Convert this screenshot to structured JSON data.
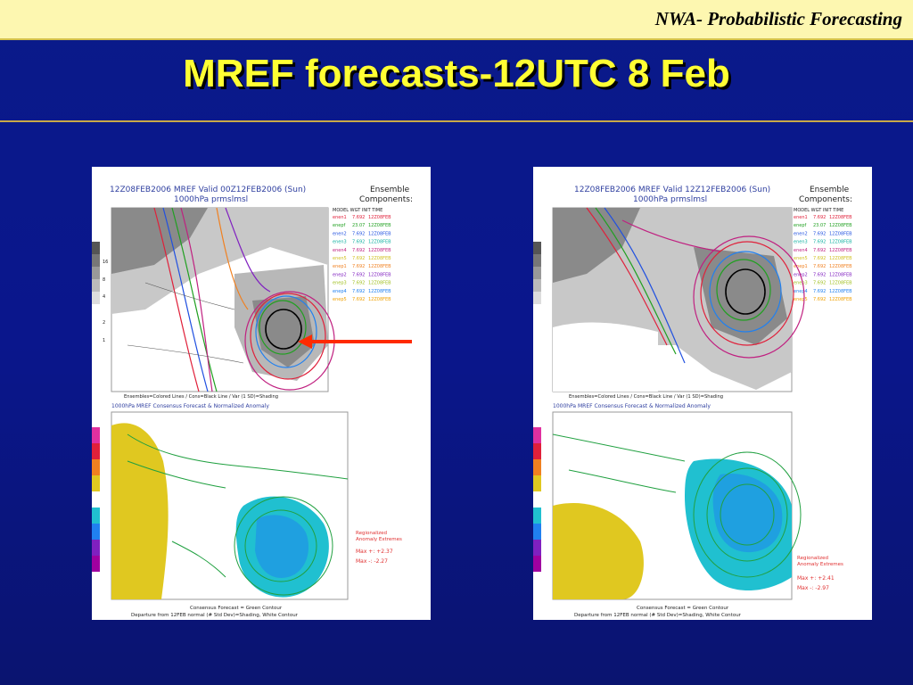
{
  "header": {
    "brand": "NWA- Probabilistic Forecasting"
  },
  "slide": {
    "title": "MREF forecasts-12UTC 8 Feb"
  },
  "colors": {
    "background": "#0a168c",
    "title": "#ffff33",
    "header_bar": "#fdf7b0",
    "arrow": "#ff2a00"
  },
  "panels": [
    {
      "top_title_1": "12Z08FEB2006 MREF Valid 00Z12FEB2006 (Sun)",
      "top_title_2": "1000hPa prmslmsl",
      "legend_title_1": "Ensemble",
      "legend_title_2": "Components:",
      "legend_header": "MODEL  WGT    INIT TIME",
      "ensemble_note": "Ensembles=Colored Lines / Cons=Black Line / Var (1 SD)=Shading",
      "bottom_title": "1000hPa MREF Consensus Forecast & Normalized Anomaly",
      "extremes_1": "Regionalized",
      "extremes_2": "Anomaly Extremes",
      "max_pos": "Max +:  +2.37",
      "max_neg": "Max -:  -2.27",
      "footer_1": "Consensus Forecast = Green Contour",
      "footer_2": "Departure from 12FEB normal (# Std Dev)=Shading, White Contour",
      "legend_rows": [
        {
          "model": "enen1",
          "wgt": "7.692",
          "init": "12Z08FEB",
          "color": "#e0203a"
        },
        {
          "model": "enepf",
          "wgt": "23.07",
          "init": "12Z08FEB",
          "color": "#20a020"
        },
        {
          "model": "enen2",
          "wgt": "7.692",
          "init": "12Z08FEB",
          "color": "#2050e0"
        },
        {
          "model": "enen3",
          "wgt": "7.692",
          "init": "12Z08FEB",
          "color": "#10b0a0"
        },
        {
          "model": "enen4",
          "wgt": "7.692",
          "init": "12Z08FEB",
          "color": "#c02080"
        },
        {
          "model": "enen5",
          "wgt": "7.692",
          "init": "12Z08FEB",
          "color": "#d0c020"
        },
        {
          "model": "enep1",
          "wgt": "7.692",
          "init": "12Z08FEB",
          "color": "#f08020"
        },
        {
          "model": "enep2",
          "wgt": "7.692",
          "init": "12Z08FEB",
          "color": "#8020c0"
        },
        {
          "model": "enep3",
          "wgt": "7.692",
          "init": "12Z08FEB",
          "color": "#a0c020"
        },
        {
          "model": "enep4",
          "wgt": "7.692",
          "init": "12Z08FEB",
          "color": "#2080f0"
        },
        {
          "model": "enep5",
          "wgt": "7.692",
          "init": "12Z08FEB",
          "color": "#f0a000"
        }
      ]
    },
    {
      "top_title_1": "12Z08FEB2006 MREF Valid 12Z12FEB2006 (Sun)",
      "top_title_2": "1000hPa prmslmsl",
      "legend_title_1": "Ensemble",
      "legend_title_2": "Components:",
      "legend_header": "MODEL  WGT    INIT TIME",
      "ensemble_note": "Ensembles=Colored Lines / Cons=Black Line / Var (1 SD)=Shading",
      "bottom_title": "1000hPa MREF Consensus Forecast & Normalized Anomaly",
      "extremes_1": "Regionalized",
      "extremes_2": "Anomaly Extremes",
      "max_pos": "Max +:  +2.41",
      "max_neg": "Max -:  -2.97",
      "footer_1": "Consensus Forecast = Green Contour",
      "footer_2": "Departure from 12FEB normal (# Std Dev)=Shading, White Contour",
      "legend_rows": [
        {
          "model": "enen1",
          "wgt": "7.692",
          "init": "12Z08FEB",
          "color": "#e0203a"
        },
        {
          "model": "enepf",
          "wgt": "23.07",
          "init": "12Z08FEB",
          "color": "#20a020"
        },
        {
          "model": "enen2",
          "wgt": "7.692",
          "init": "12Z08FEB",
          "color": "#2050e0"
        },
        {
          "model": "enen3",
          "wgt": "7.692",
          "init": "12Z08FEB",
          "color": "#10b0a0"
        },
        {
          "model": "enen4",
          "wgt": "7.692",
          "init": "12Z08FEB",
          "color": "#c02080"
        },
        {
          "model": "enen5",
          "wgt": "7.692",
          "init": "12Z08FEB",
          "color": "#d0c020"
        },
        {
          "model": "enep1",
          "wgt": "7.692",
          "init": "12Z08FEB",
          "color": "#f08020"
        },
        {
          "model": "enep2",
          "wgt": "7.692",
          "init": "12Z08FEB",
          "color": "#8020c0"
        },
        {
          "model": "enep3",
          "wgt": "7.692",
          "init": "12Z08FEB",
          "color": "#a0c020"
        },
        {
          "model": "enep4",
          "wgt": "7.692",
          "init": "12Z08FEB",
          "color": "#2080f0"
        },
        {
          "model": "enep5",
          "wgt": "7.692",
          "init": "12Z08FEB",
          "color": "#f0a000"
        }
      ]
    }
  ]
}
